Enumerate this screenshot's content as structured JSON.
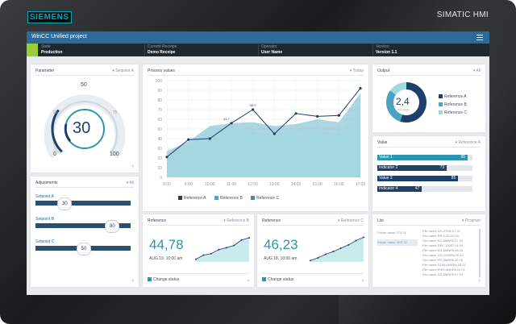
{
  "device": {
    "brand": "SIEMENS",
    "model": "SIMATIC HMI"
  },
  "titlebar": {
    "title": "WinCC Unified project"
  },
  "info": [
    {
      "label": "State",
      "value": "Production"
    },
    {
      "label": "Current Receipe",
      "value": "Demo Receipe"
    },
    {
      "label": "Operator",
      "value": "User Name"
    },
    {
      "label": "Version",
      "value": "Version 1.1"
    }
  ],
  "parameter": {
    "title": "Parameter",
    "selector": "Setpoint A",
    "value": "30",
    "scale": {
      "min": "0",
      "s25": "25",
      "s50": "50",
      "s75": "75",
      "max": "100"
    },
    "gauge_fraction": 0.3
  },
  "adjustments": {
    "title": "Adjustments",
    "selector": "All",
    "items": [
      {
        "label": "Setpoint A",
        "value": "30",
        "level": 0.3
      },
      {
        "label": "Setpoint B",
        "value": "80",
        "level": 0.8
      },
      {
        "label": "Setpoint C",
        "value": "50",
        "level": 0.5
      }
    ]
  },
  "process": {
    "title": "Process values",
    "selector": "Today",
    "chart_data": {
      "type": "area",
      "x": [
        "8:00",
        "9:00",
        "10:00",
        "11:00",
        "12:00",
        "13:00",
        "14:00",
        "15:00",
        "16:00",
        "17:00"
      ],
      "ylim": [
        0,
        100
      ],
      "yticks": [
        "0",
        "10",
        "20",
        "30",
        "40",
        "50",
        "60",
        "70",
        "80",
        "90",
        "100"
      ],
      "series": [
        {
          "name": "Reference A",
          "values": [
            21,
            39,
            40,
            56,
            70,
            45,
            66,
            63,
            64,
            92
          ]
        },
        {
          "name": "Reference B",
          "values": [
            27,
            37,
            53,
            56,
            57,
            53,
            55,
            60,
            57,
            87
          ]
        },
        {
          "name": "Reference C",
          "values": [
            23,
            34,
            50,
            52,
            47,
            45,
            50,
            48,
            45,
            73
          ]
        }
      ],
      "annotations": [
        "44.7",
        "56.9"
      ]
    }
  },
  "output": {
    "title": "Output",
    "selector": "All",
    "center_value": "2,4",
    "center_sub": "Thousands",
    "chart_data": {
      "type": "pie",
      "labels": [
        "Reference A",
        "Reference B",
        "Reference C"
      ],
      "values": [
        55,
        30,
        15
      ]
    },
    "colors": [
      "#1d3f6a",
      "#4aa3bf",
      "#9ed9de"
    ]
  },
  "value": {
    "title": "Value",
    "selector": "Reference A",
    "chart_data": {
      "type": "bar",
      "categories": [
        "Value 1",
        "Indicator 2",
        "Value 3",
        "Indicator 4"
      ],
      "values": [
        95,
        73,
        85,
        47
      ],
      "xlim": [
        0,
        100
      ]
    },
    "colors": [
      "#2b95b1",
      "#1d3f6a",
      "#1d3f6a",
      "#1d3f6a"
    ]
  },
  "reference1": {
    "title": "Reference",
    "selector": "Reference B",
    "value": "44,78",
    "date": "AUG 19, 10:00 am",
    "check": "Change status",
    "spark": [
      10,
      25,
      30,
      45,
      52,
      60,
      80,
      88
    ]
  },
  "reference2": {
    "title": "Reference",
    "selector": "Reference C",
    "value": "46,23",
    "date": "AUG 18, 10:00 am",
    "check": "Change status",
    "spark": [
      5,
      15,
      28,
      38,
      50,
      62,
      78,
      90
    ]
  },
  "list": {
    "title": "List",
    "selector": "Program",
    "left": [
      "Folder name 274 01",
      "Folder name 4RS 02"
    ],
    "right": [
      "File name UG-27KB 07 01",
      "File name RN.0-05 03 04",
      "File name KG-6MNPA 07 01",
      "File name DEF-1005T 01 04",
      "File name KG-6MNPA 08 03",
      "File name UG-1MNPA 08 41",
      "File name ER-6MNPA 02 05",
      "File name DOM-6MNPA 05 01",
      "File name PRR-6MNPA 01 01",
      "File name XG-6MNPA 07 01"
    ]
  }
}
